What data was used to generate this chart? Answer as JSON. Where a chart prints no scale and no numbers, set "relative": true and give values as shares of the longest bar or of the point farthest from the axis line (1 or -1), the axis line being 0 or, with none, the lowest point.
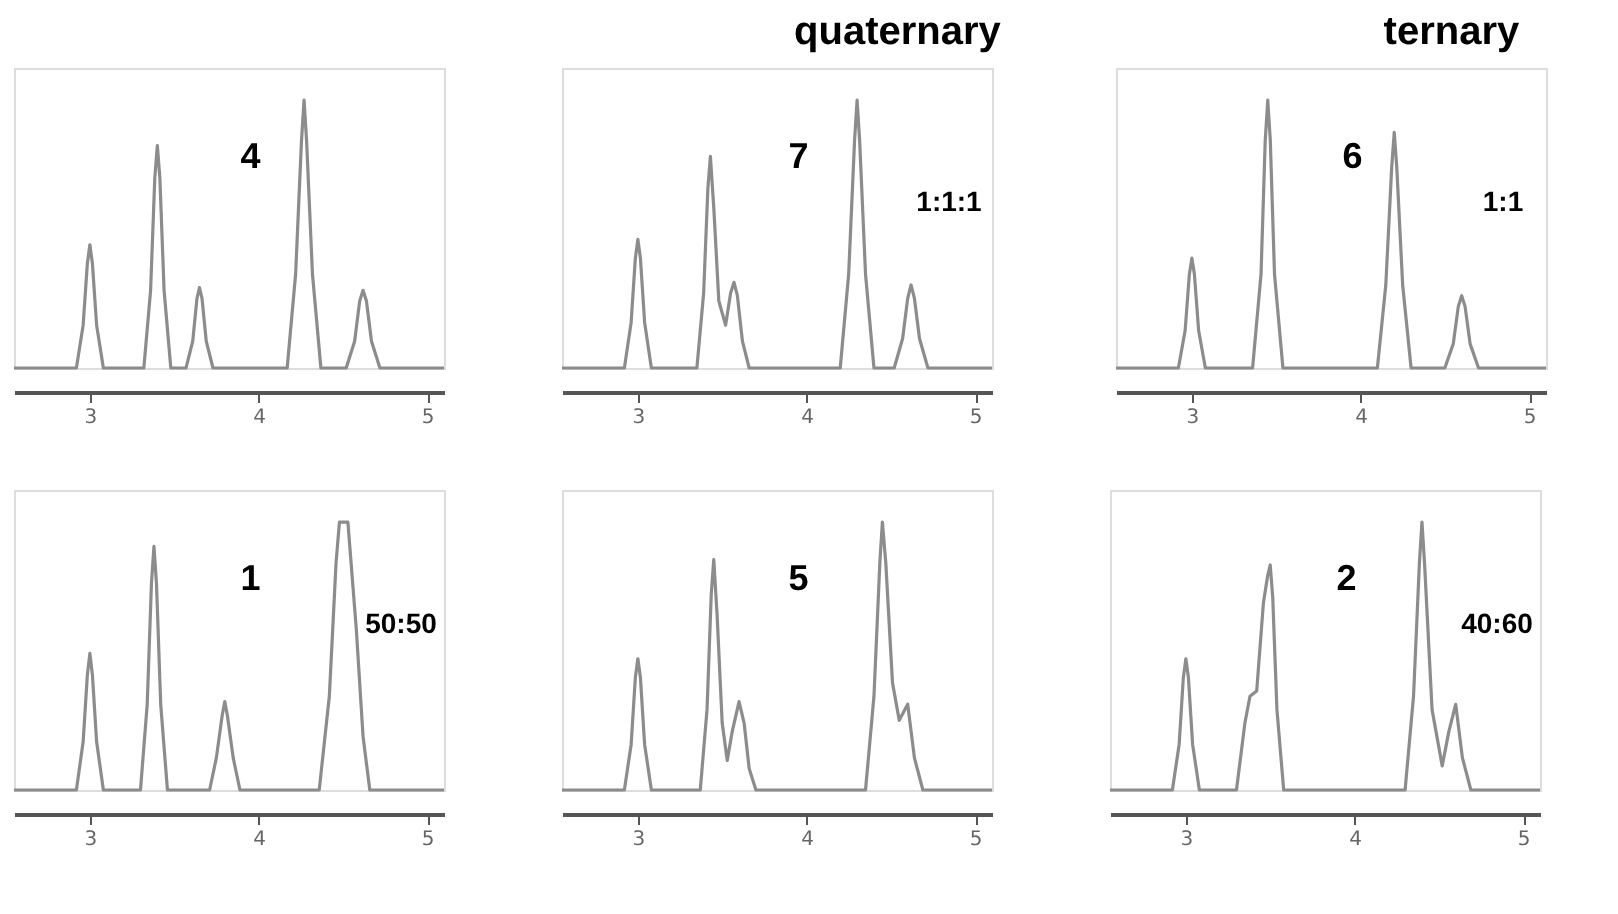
{
  "chart_data": [
    {
      "type": "line",
      "relative": true,
      "tick_labels": "x",
      "grid": false,
      "xlim": [
        2.55,
        5.1
      ],
      "xticks": [
        3,
        4,
        5
      ],
      "annotations": [
        "4"
      ],
      "series": [
        {
          "color": "#8c8c8c",
          "x": [
            2.55,
            2.92,
            2.96,
            2.985,
            3.0,
            3.015,
            3.04,
            3.08,
            3.32,
            3.36,
            3.385,
            3.4,
            3.415,
            3.44,
            3.48,
            3.57,
            3.61,
            3.635,
            3.65,
            3.665,
            3.69,
            3.73,
            4.17,
            4.22,
            4.255,
            4.27,
            4.285,
            4.32,
            4.37,
            4.52,
            4.57,
            4.6,
            4.62,
            4.64,
            4.67,
            4.72,
            5.1
          ],
          "values": [
            0,
            0,
            0.16,
            0.39,
            0.46,
            0.39,
            0.16,
            0,
            0,
            0.29,
            0.71,
            0.83,
            0.71,
            0.29,
            0,
            0,
            0.1,
            0.26,
            0.3,
            0.26,
            0.1,
            0,
            0,
            0.35,
            0.85,
            1,
            0.85,
            0.35,
            0,
            0,
            0.1,
            0.25,
            0.29,
            0.25,
            0.1,
            0,
            0
          ]
        }
      ]
    },
    {
      "type": "line",
      "relative": true,
      "tick_labels": "x",
      "grid": false,
      "xlim": [
        2.55,
        5.1
      ],
      "xticks": [
        3,
        4,
        5
      ],
      "annotations": [
        "7",
        "1:1:1",
        "quaternary"
      ],
      "series": [
        {
          "color": "#8c8c8c",
          "x": [
            2.55,
            2.92,
            2.96,
            2.985,
            3.0,
            3.015,
            3.04,
            3.08,
            3.35,
            3.39,
            3.415,
            3.43,
            3.45,
            3.48,
            3.52,
            3.55,
            3.57,
            3.59,
            3.62,
            3.66,
            4.2,
            4.25,
            4.285,
            4.3,
            4.315,
            4.35,
            4.4,
            4.52,
            4.57,
            4.6,
            4.62,
            4.64,
            4.67,
            4.72,
            5.1
          ],
          "values": [
            0,
            0,
            0.17,
            0.41,
            0.48,
            0.41,
            0.17,
            0,
            0,
            0.28,
            0.67,
            0.79,
            0.6,
            0.25,
            0.16,
            0.28,
            0.32,
            0.27,
            0.1,
            0,
            0,
            0.35,
            0.85,
            1,
            0.85,
            0.35,
            0,
            0,
            0.11,
            0.26,
            0.31,
            0.26,
            0.11,
            0,
            0
          ]
        }
      ]
    },
    {
      "type": "line",
      "relative": true,
      "tick_labels": "x",
      "grid": false,
      "xlim": [
        2.55,
        5.1
      ],
      "xticks": [
        3,
        4,
        5
      ],
      "annotations": [
        "6",
        "1:1",
        "ternary"
      ],
      "series": [
        {
          "color": "#8c8c8c",
          "x": [
            2.55,
            2.92,
            2.96,
            2.985,
            3.0,
            3.015,
            3.04,
            3.08,
            3.36,
            3.41,
            3.435,
            3.45,
            3.465,
            3.49,
            3.54,
            4.1,
            4.15,
            4.185,
            4.2,
            4.215,
            4.25,
            4.3,
            4.5,
            4.55,
            4.58,
            4.6,
            4.62,
            4.65,
            4.7,
            5.1
          ],
          "values": [
            0,
            0,
            0.14,
            0.35,
            0.41,
            0.35,
            0.14,
            0,
            0,
            0.35,
            0.85,
            1,
            0.85,
            0.35,
            0,
            0,
            0.31,
            0.75,
            0.88,
            0.75,
            0.31,
            0,
            0,
            0.09,
            0.23,
            0.27,
            0.23,
            0.09,
            0,
            0
          ]
        }
      ]
    },
    {
      "type": "line",
      "relative": true,
      "tick_labels": "x",
      "grid": false,
      "xlim": [
        2.55,
        5.1
      ],
      "xticks": [
        3,
        4,
        5
      ],
      "annotations": [
        "1",
        "50:50"
      ],
      "series": [
        {
          "color": "#8c8c8c",
          "x": [
            2.55,
            2.92,
            2.96,
            2.985,
            3.0,
            3.015,
            3.04,
            3.08,
            3.3,
            3.34,
            3.365,
            3.38,
            3.395,
            3.42,
            3.46,
            3.71,
            3.75,
            3.785,
            3.8,
            3.815,
            3.85,
            3.89,
            4.36,
            4.42,
            4.46,
            4.48,
            4.53,
            4.58,
            4.62,
            4.66,
            5.1
          ],
          "values": [
            0,
            0,
            0.18,
            0.43,
            0.51,
            0.43,
            0.18,
            0,
            0,
            0.32,
            0.77,
            0.91,
            0.77,
            0.32,
            0,
            0,
            0.12,
            0.28,
            0.33,
            0.28,
            0.12,
            0,
            0,
            0.35,
            0.85,
            1,
            1,
            0.6,
            0.2,
            0,
            0
          ]
        }
      ]
    },
    {
      "type": "line",
      "relative": true,
      "tick_labels": "x",
      "grid": false,
      "xlim": [
        2.55,
        5.1
      ],
      "xticks": [
        3,
        4,
        5
      ],
      "annotations": [
        "5"
      ],
      "series": [
        {
          "color": "#8c8c8c",
          "x": [
            2.55,
            2.92,
            2.96,
            2.985,
            3.0,
            3.015,
            3.04,
            3.08,
            3.37,
            3.41,
            3.435,
            3.45,
            3.47,
            3.5,
            3.53,
            3.56,
            3.6,
            3.63,
            3.66,
            3.7,
            4.35,
            4.4,
            4.435,
            4.45,
            4.47,
            4.51,
            4.55,
            4.6,
            4.64,
            4.69,
            5.1
          ],
          "values": [
            0,
            0,
            0.17,
            0.42,
            0.49,
            0.42,
            0.17,
            0,
            0,
            0.3,
            0.73,
            0.86,
            0.65,
            0.25,
            0.11,
            0.22,
            0.33,
            0.25,
            0.08,
            0,
            0,
            0.35,
            0.85,
            1,
            0.85,
            0.4,
            0.26,
            0.32,
            0.12,
            0,
            0
          ]
        }
      ]
    },
    {
      "type": "line",
      "relative": true,
      "tick_labels": "x",
      "grid": false,
      "xlim": [
        2.55,
        5.1
      ],
      "xticks": [
        3,
        4,
        5
      ],
      "annotations": [
        "2",
        "40:60"
      ],
      "series": [
        {
          "color": "#8c8c8c",
          "x": [
            2.55,
            2.92,
            2.96,
            2.985,
            3.0,
            3.015,
            3.04,
            3.08,
            3.3,
            3.35,
            3.38,
            3.42,
            3.46,
            3.485,
            3.5,
            3.515,
            3.54,
            3.58,
            4.3,
            4.35,
            4.385,
            4.4,
            4.415,
            4.46,
            4.52,
            4.56,
            4.6,
            4.64,
            4.69,
            5.1
          ],
          "values": [
            0,
            0,
            0.17,
            0.42,
            0.49,
            0.42,
            0.17,
            0,
            0,
            0.25,
            0.35,
            0.37,
            0.7,
            0.8,
            0.84,
            0.72,
            0.3,
            0,
            0,
            0.35,
            0.85,
            1,
            0.85,
            0.3,
            0.09,
            0.22,
            0.32,
            0.12,
            0,
            0
          ]
        }
      ]
    }
  ]
}
